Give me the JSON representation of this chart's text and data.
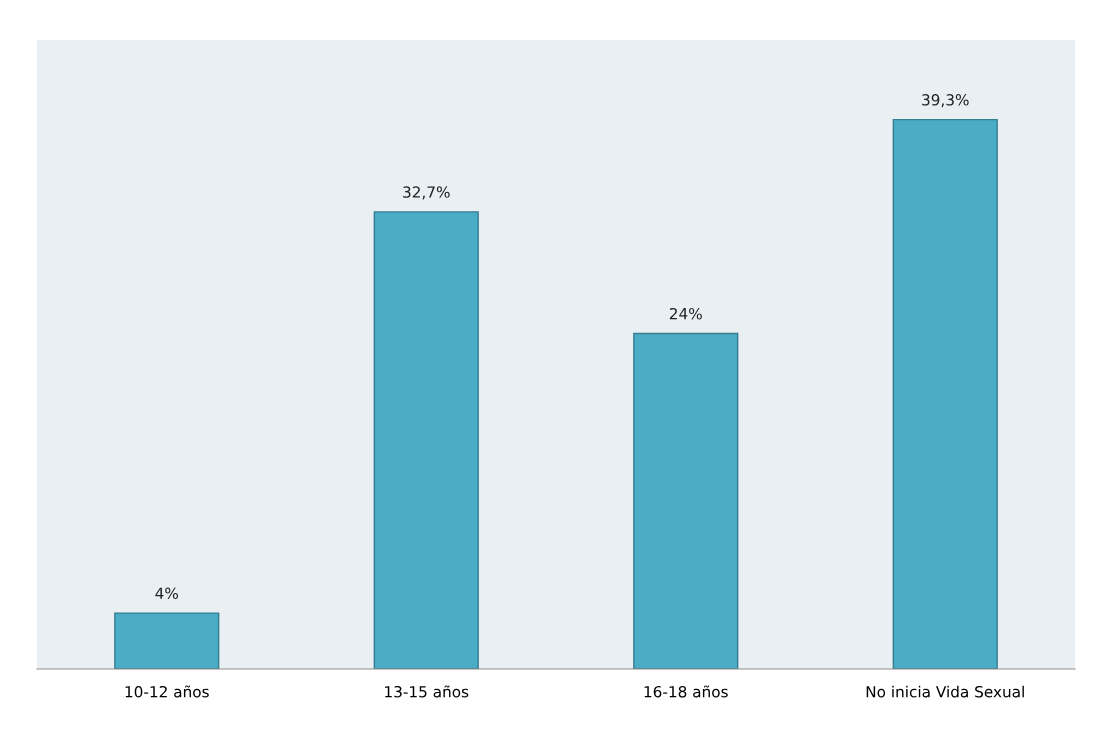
{
  "chart_data": {
    "type": "bar",
    "categories": [
      "10-12 años",
      "13-15 años",
      "16-18 años",
      "No inicia Vida Sexual"
    ],
    "values": [
      4,
      32.7,
      24,
      39.3
    ],
    "value_labels": [
      "4%",
      "32,7%",
      "24%",
      "39,3%"
    ],
    "color": "#4bacc6"
  }
}
